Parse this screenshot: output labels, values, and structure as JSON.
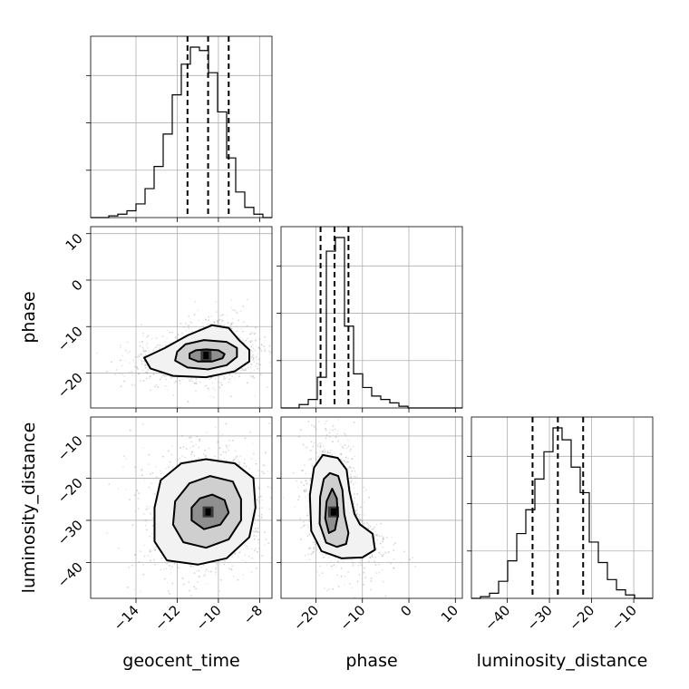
{
  "chart_data": {
    "type": "corner",
    "parameters": [
      "geocent_time",
      "phase",
      "luminosity_distance"
    ],
    "ranges": {
      "geocent_time": [
        -16.2,
        -7.4
      ],
      "phase": [
        -27.5,
        11.5
      ],
      "luminosity_distance": [
        -48.5,
        -5.5
      ]
    },
    "ticks": {
      "geocent_time": [
        -14,
        -12,
        -10,
        -8
      ],
      "phase": [
        -20,
        -10,
        0,
        10
      ],
      "luminosity_distance": [
        -40,
        -30,
        -20,
        -10
      ]
    },
    "tick_labels": {
      "geocent_time": [
        "−14",
        "−12",
        "−10",
        "−8"
      ],
      "phase": [
        "−20",
        "−10",
        "0",
        "10"
      ],
      "luminosity_distance": [
        "−40",
        "−30",
        "−20",
        "−10"
      ]
    },
    "quantiles": {
      "geocent_time": [
        -11.5,
        -10.5,
        -9.5
      ],
      "phase": [
        -19,
        -16,
        -13
      ],
      "luminosity_distance": [
        -34,
        -28,
        -22
      ]
    },
    "histograms": {
      "geocent_time": {
        "edges": [
          -16.2,
          -15.76,
          -15.32,
          -14.88,
          -14.44,
          -14.0,
          -13.56,
          -13.12,
          -12.68,
          -12.24,
          -11.8,
          -11.36,
          -10.92,
          -10.48,
          -10.04,
          -9.6,
          -9.16,
          -8.72,
          -8.28,
          -7.84,
          -7.4
        ],
        "counts": [
          0.0,
          0.0,
          0.01,
          0.02,
          0.04,
          0.08,
          0.17,
          0.3,
          0.49,
          0.72,
          0.9,
          1.0,
          0.98,
          0.85,
          0.62,
          0.35,
          0.15,
          0.06,
          0.02,
          0.0
        ]
      },
      "phase": {
        "edges": [
          -27.5,
          -25.55,
          -23.6,
          -21.65,
          -19.7,
          -17.75,
          -15.8,
          -13.85,
          -11.9,
          -9.95,
          -8.0,
          -6.05,
          -4.1,
          -2.15,
          -0.2,
          1.75,
          3.7,
          5.65,
          7.6,
          9.55,
          11.5
        ],
        "counts": [
          0.0,
          0.0,
          0.02,
          0.05,
          0.18,
          0.92,
          1.0,
          0.48,
          0.2,
          0.12,
          0.07,
          0.05,
          0.03,
          0.01,
          0.0,
          0.0,
          0.0,
          0.0,
          0.0,
          0.0
        ]
      },
      "luminosity_distance": {
        "edges": [
          -48.5,
          -46.35,
          -44.2,
          -42.05,
          -39.9,
          -37.75,
          -35.6,
          -33.45,
          -31.3,
          -29.15,
          -27.0,
          -24.85,
          -22.7,
          -20.55,
          -18.4,
          -16.25,
          -14.1,
          -11.95,
          -9.8,
          -7.65,
          -5.5
        ],
        "counts": [
          0.0,
          0.01,
          0.03,
          0.1,
          0.22,
          0.38,
          0.52,
          0.7,
          0.86,
          1.0,
          0.93,
          0.77,
          0.62,
          0.33,
          0.21,
          0.11,
          0.05,
          0.02,
          0.0,
          0.0
        ]
      }
    },
    "joint_2d": [
      {
        "x": "geocent_time",
        "y": "phase",
        "peak": [
          -10.6,
          -16.2
        ],
        "contours": [
          [
            [
              -10.6,
              -14.9
            ],
            [
              -10.0,
              -15.1
            ],
            [
              -9.7,
              -15.9
            ],
            [
              -9.8,
              -16.8
            ],
            [
              -10.3,
              -17.5
            ],
            [
              -11.0,
              -17.5
            ],
            [
              -11.4,
              -16.8
            ],
            [
              -11.4,
              -15.8
            ],
            [
              -11.1,
              -15.1
            ]
          ],
          [
            [
              -10.7,
              -12.9
            ],
            [
              -9.6,
              -13.3
            ],
            [
              -9.1,
              -14.6
            ],
            [
              -9.1,
              -16.5
            ],
            [
              -9.6,
              -18.3
            ],
            [
              -10.5,
              -19.2
            ],
            [
              -11.5,
              -18.8
            ],
            [
              -12.1,
              -17.3
            ],
            [
              -12.0,
              -15.4
            ],
            [
              -11.6,
              -13.8
            ]
          ],
          [
            [
              -10.3,
              -9.7
            ],
            [
              -9.5,
              -10.3
            ],
            [
              -9.0,
              -12.9
            ],
            [
              -8.5,
              -15.0
            ],
            [
              -8.5,
              -17.5
            ],
            [
              -9.2,
              -19.6
            ],
            [
              -10.6,
              -20.9
            ],
            [
              -12.2,
              -20.6
            ],
            [
              -13.3,
              -19.0
            ],
            [
              -13.6,
              -16.7
            ],
            [
              -12.6,
              -14.6
            ],
            [
              -11.5,
              -11.9
            ]
          ]
        ]
      },
      {
        "x": "geocent_time",
        "y": "luminosity_distance",
        "peak": [
          -10.5,
          -28.0
        ],
        "contours": [
          [
            [
              -10.3,
              -23.9
            ],
            [
              -9.7,
              -25.2
            ],
            [
              -9.5,
              -28.2
            ],
            [
              -9.9,
              -31.0
            ],
            [
              -10.7,
              -32.1
            ],
            [
              -11.3,
              -30.0
            ],
            [
              -11.3,
              -27.0
            ],
            [
              -10.9,
              -24.8
            ]
          ],
          [
            [
              -10.4,
              -19.5
            ],
            [
              -9.3,
              -20.8
            ],
            [
              -8.9,
              -25.0
            ],
            [
              -8.9,
              -30.0
            ],
            [
              -9.5,
              -34.5
            ],
            [
              -10.6,
              -36.5
            ],
            [
              -11.7,
              -35.2
            ],
            [
              -12.2,
              -31.0
            ],
            [
              -12.1,
              -25.5
            ],
            [
              -11.4,
              -21.2
            ]
          ],
          [
            [
              -10.6,
              -15.5
            ],
            [
              -9.2,
              -16.5
            ],
            [
              -8.3,
              -20.0
            ],
            [
              -8.2,
              -27.0
            ],
            [
              -8.5,
              -34.0
            ],
            [
              -9.6,
              -39.0
            ],
            [
              -11.0,
              -40.5
            ],
            [
              -12.5,
              -39.5
            ],
            [
              -13.1,
              -35.0
            ],
            [
              -13.1,
              -27.0
            ],
            [
              -12.8,
              -20.5
            ],
            [
              -11.8,
              -16.5
            ]
          ]
        ]
      },
      {
        "x": "phase",
        "y": "luminosity_distance",
        "peak": [
          -16.2,
          -28.0
        ],
        "contours": [
          [
            [
              -16.5,
              -22.5
            ],
            [
              -15.5,
              -24.8
            ],
            [
              -15.3,
              -29.0
            ],
            [
              -15.9,
              -32.3
            ],
            [
              -17.2,
              -33.0
            ],
            [
              -18.0,
              -29.5
            ],
            [
              -17.7,
              -25.5
            ]
          ],
          [
            [
              -17.0,
              -18.8
            ],
            [
              -15.2,
              -19.5
            ],
            [
              -14.3,
              -22.8
            ],
            [
              -13.9,
              -28.5
            ],
            [
              -13.0,
              -33.0
            ],
            [
              -13.5,
              -35.6
            ],
            [
              -15.5,
              -36.3
            ],
            [
              -17.8,
              -35.3
            ],
            [
              -19.2,
              -30.8
            ],
            [
              -19.1,
              -24.5
            ],
            [
              -18.3,
              -20.2
            ]
          ],
          [
            [
              -18.5,
              -14.5
            ],
            [
              -15.3,
              -15.2
            ],
            [
              -13.4,
              -18.0
            ],
            [
              -12.8,
              -23.0
            ],
            [
              -11.7,
              -28.5
            ],
            [
              -10.5,
              -31.0
            ],
            [
              -7.8,
              -33.2
            ],
            [
              -7.3,
              -37.0
            ],
            [
              -10.0,
              -38.8
            ],
            [
              -14.5,
              -39.0
            ],
            [
              -18.8,
              -37.3
            ],
            [
              -21.0,
              -32.5
            ],
            [
              -21.3,
              -24.0
            ],
            [
              -20.4,
              -17.5
            ]
          ]
        ]
      }
    ],
    "grid": true,
    "histogram_style": "step",
    "marginal_y_tick_labels": false
  }
}
